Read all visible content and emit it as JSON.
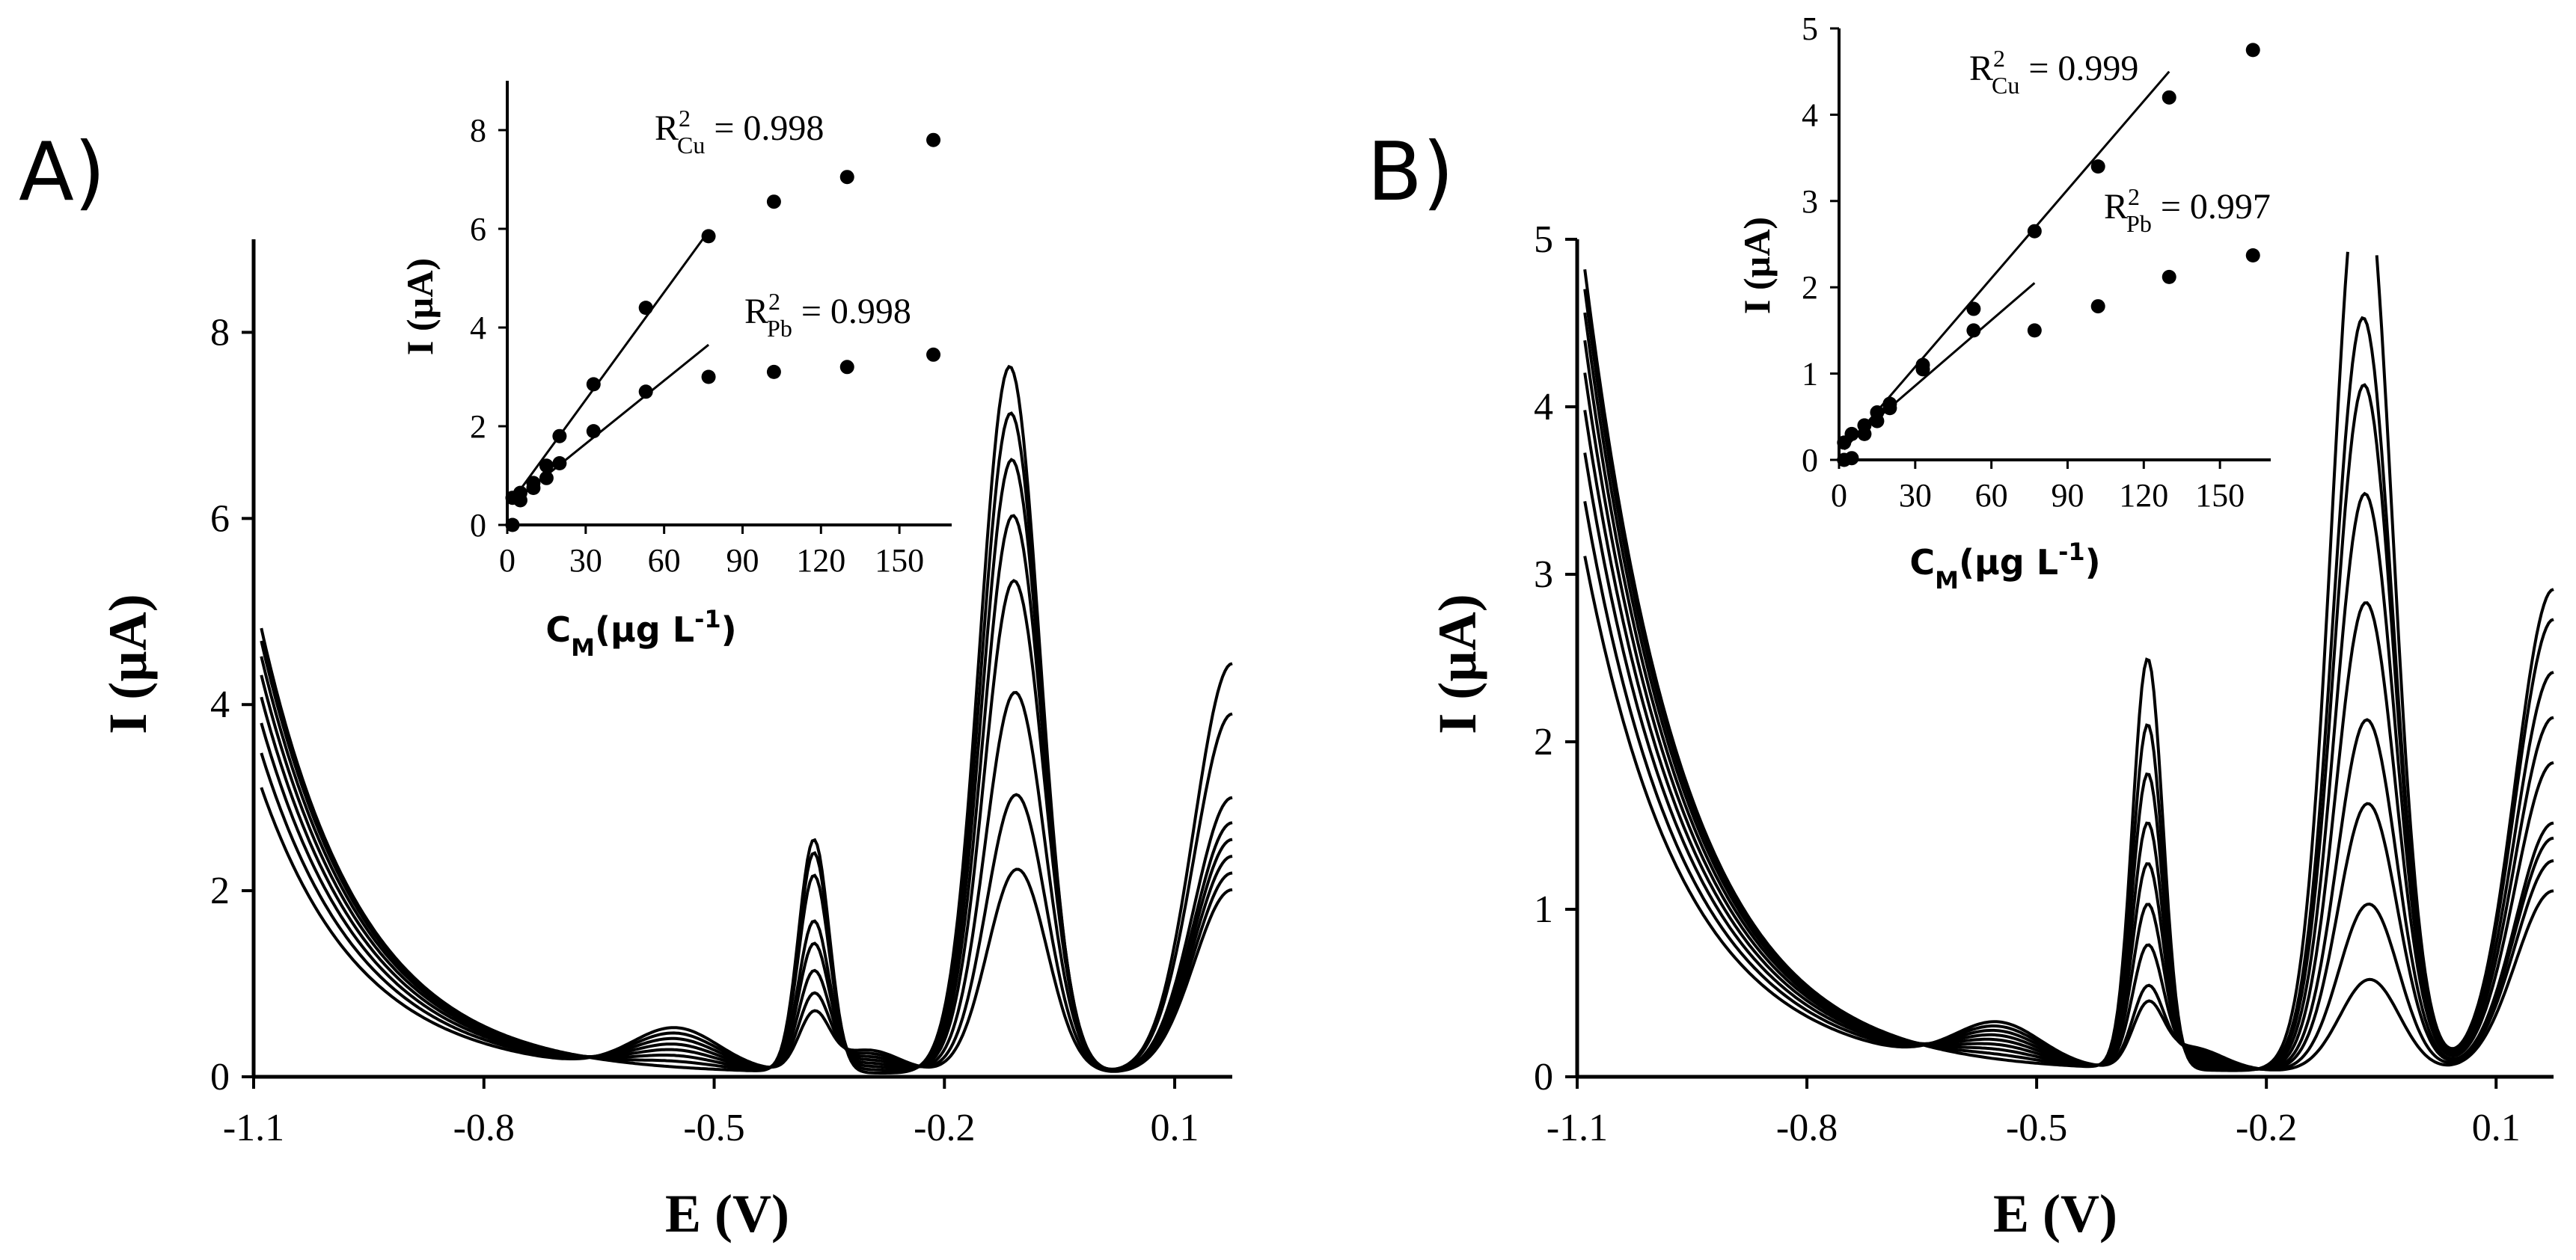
{
  "chart_data": [
    {
      "panel": "A)",
      "type": "line",
      "xlabel": "E (V)",
      "ylabel": "I (µA)",
      "xlim": [
        -1.1,
        0.175
      ],
      "ylim": [
        0,
        9
      ],
      "xticks": [
        "-1.1",
        "-0.8",
        "-0.5",
        "-0.2",
        "0.1"
      ],
      "yticks": [
        "0",
        "2",
        "4",
        "6",
        "8"
      ],
      "grid": false,
      "legend": "none",
      "curve_family": {
        "count": 8,
        "clip_above": 9,
        "peak_Pb": {
          "x": -0.37,
          "height": [
            0.6,
            0.8,
            1.05,
            1.35,
            1.6,
            2.1,
            2.35,
            2.5
          ]
        },
        "peak_Cu": {
          "x": -0.105,
          "height": [
            2.2,
            3.0,
            4.1,
            5.3,
            6.0,
            6.6,
            7.1,
            7.6
          ]
        },
        "right_end": [
          2.2,
          2.4,
          2.6,
          2.8,
          3.0,
          3.3,
          4.3,
          4.9
        ]
      },
      "inset": {
        "type": "scatter",
        "xlabel": "C",
        "xlabel_sub": "M",
        "xlabel_rest": "(µg L",
        "xlabel_sup": "-1",
        "xlabel_end": ")",
        "ylabel": "I (µA)",
        "xlim": [
          0,
          170
        ],
        "ylim": [
          0,
          9
        ],
        "xticks": [
          "0",
          "30",
          "60",
          "90",
          "120",
          "150"
        ],
        "yticks": [
          "0",
          "2",
          "4",
          "6",
          "8"
        ],
        "series": [
          {
            "metal": "Cu",
            "x": [
              2,
              5,
              10,
              15,
              20,
              33,
              53,
              77,
              102,
              130,
              163
            ],
            "y": [
              0.55,
              0.65,
              0.85,
              1.2,
              1.8,
              2.85,
              4.4,
              5.85,
              6.55,
              7.05,
              7.8
            ],
            "fit": {
              "x0": 2,
              "y0": 0.5,
              "x1": 77,
              "y1": 5.95
            },
            "annotation": {
              "base": "R",
              "sup": "2",
              "sub": "Cu",
              "text": " = 0.998"
            }
          },
          {
            "metal": "Pb",
            "x": [
              2,
              5,
              10,
              15,
              20,
              33,
              53,
              77,
              102,
              130,
              163
            ],
            "y": [
              0.0,
              0.5,
              0.75,
              0.95,
              1.25,
              1.9,
              2.7,
              3.0,
              3.1,
              3.2,
              3.45
            ],
            "fit": {
              "x0": 2,
              "y0": 0.45,
              "x1": 77,
              "y1": 3.65
            },
            "annotation": {
              "base": "R",
              "sup": "2",
              "sub": "Pb",
              "text": " = 0.998"
            }
          }
        ]
      }
    },
    {
      "panel": "B)",
      "type": "line",
      "xlabel": "E (V)",
      "ylabel": "I (µA)",
      "xlim": [
        -1.1,
        0.175
      ],
      "ylim": [
        0,
        5
      ],
      "xticks": [
        "-1.1",
        "-0.8",
        "-0.5",
        "-0.2",
        "0.1"
      ],
      "yticks": [
        "0",
        "1",
        "2",
        "3",
        "4",
        "5"
      ],
      "grid": false,
      "legend": "none",
      "curve_family": {
        "count": 9,
        "clip_above": 5,
        "peak_Pb": {
          "x": -0.355,
          "height": [
            0.35,
            0.45,
            0.7,
            0.95,
            1.2,
            1.45,
            1.75,
            2.05,
            2.45
          ]
        },
        "peak_Cu": {
          "x": -0.065,
          "height": [
            0.55,
            1.0,
            1.6,
            2.1,
            2.8,
            3.45,
            4.1,
            4.5,
            5.5
          ]
        },
        "right_end": [
          1.2,
          1.4,
          1.55,
          1.65,
          2.05,
          2.35,
          2.65,
          3.0,
          3.2
        ]
      },
      "inset": {
        "type": "scatter",
        "xlabel": "C",
        "xlabel_sub": "M",
        "xlabel_rest": "(µg L",
        "xlabel_sup": "-1",
        "xlabel_end": ")",
        "ylabel": "I (µA)",
        "xlim": [
          0,
          170
        ],
        "ylim": [
          0,
          5
        ],
        "xticks": [
          "0",
          "30",
          "60",
          "90",
          "120",
          "150"
        ],
        "yticks": [
          "0",
          "1",
          "2",
          "3",
          "4",
          "5"
        ],
        "series": [
          {
            "metal": "Cu",
            "x": [
              2,
              5,
              10,
              15,
              20,
              33,
              53,
              77,
              102,
              130,
              163
            ],
            "y": [
              0.2,
              0.3,
              0.4,
              0.55,
              0.65,
              1.1,
              1.75,
              2.65,
              3.4,
              4.2,
              4.75
            ],
            "fit": {
              "x0": 2,
              "y0": 0.12,
              "x1": 130,
              "y1": 4.5
            },
            "annotation": {
              "base": "R",
              "sup": "2",
              "sub": "Cu",
              "text": " = 0.999"
            }
          },
          {
            "metal": "Pb",
            "x": [
              2,
              5,
              10,
              15,
              20,
              33,
              53,
              77,
              102,
              130,
              163
            ],
            "y": [
              0.0,
              0.02,
              0.3,
              0.45,
              0.6,
              1.05,
              1.5,
              1.5,
              1.78,
              2.12,
              2.37
            ],
            "fit": {
              "x0": 2,
              "y0": 0.15,
              "x1": 77,
              "y1": 2.05
            },
            "annotation": {
              "base": "R",
              "sup": "2",
              "sub": "Pb",
              "text": " = 0.997"
            }
          }
        ]
      }
    }
  ]
}
